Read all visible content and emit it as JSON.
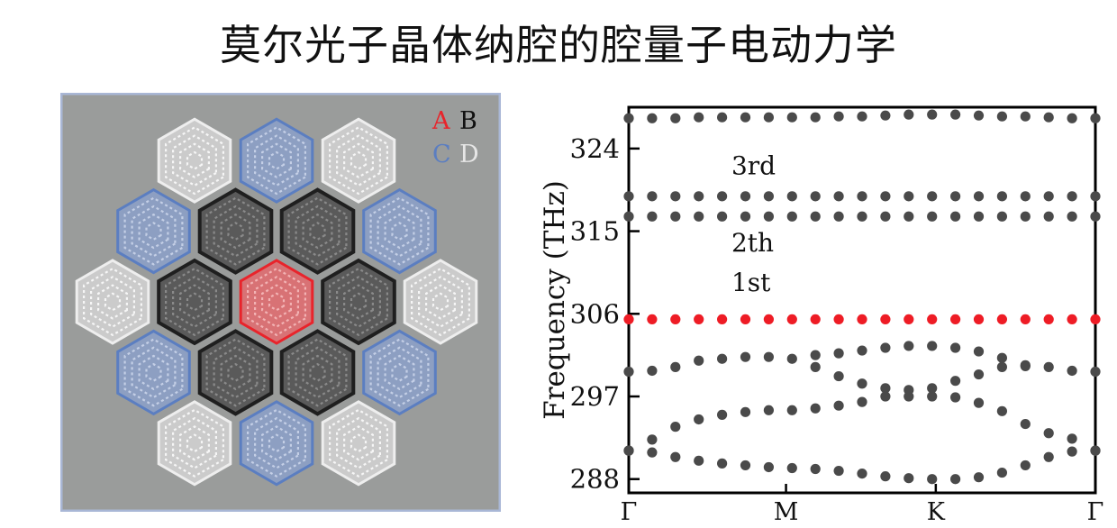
{
  "title": "莫尔光子晶体纳腔的腔量子电动力学",
  "lattice": {
    "legend": [
      {
        "letter": "A",
        "color": "#e8242b"
      },
      {
        "letter": "B",
        "color": "#111111"
      },
      {
        "letter": "C",
        "color": "#5b7ec1"
      },
      {
        "letter": "D",
        "color": "#e6e6e6"
      }
    ],
    "colors": {
      "background": "#9a9c9b",
      "border": "#a9b7d6",
      "A": "#e8242b",
      "B": "#2a2a2a",
      "C": "#6f8fcf",
      "D": "#f0f0f0"
    }
  },
  "chart_data": {
    "type": "scatter",
    "title": "",
    "xlabel": "",
    "ylabel": "Frequency (THz)",
    "x_ticks": [
      "Γ",
      "M",
      "K",
      "Γ"
    ],
    "y_ticks": [
      288,
      297,
      306,
      315,
      324
    ],
    "ylim": [
      286.5,
      328.5
    ],
    "grid": false,
    "annotations": [
      {
        "text": "3rd",
        "x": 0.22,
        "y": 321.2
      },
      {
        "text": "2th",
        "x": 0.22,
        "y": 312.8
      },
      {
        "text": "1st",
        "x": 0.22,
        "y": 308.5
      }
    ],
    "highlight_color": "#ee1c25",
    "point_color": "#4a4a4a",
    "series": [
      {
        "highlight": false,
        "x": [
          0,
          0.05,
          0.1,
          0.15,
          0.2,
          0.25,
          0.3,
          0.35,
          0.4,
          0.45,
          0.5,
          0.55,
          0.6,
          0.65,
          0.7,
          0.75,
          0.8,
          0.85,
          0.9,
          0.95,
          1.0
        ],
        "y": [
          327.3,
          327.3,
          327.3,
          327.4,
          327.4,
          327.4,
          327.4,
          327.4,
          327.4,
          327.5,
          327.5,
          327.6,
          327.7,
          327.7,
          327.7,
          327.6,
          327.5,
          327.5,
          327.4,
          327.3,
          327.3
        ]
      },
      {
        "highlight": false,
        "x": [
          0,
          0.05,
          0.1,
          0.15,
          0.2,
          0.25,
          0.3,
          0.35,
          0.4,
          0.45,
          0.5,
          0.55,
          0.6,
          0.65,
          0.7,
          0.75,
          0.8,
          0.85,
          0.9,
          0.95,
          1.0
        ],
        "y": [
          318.8,
          318.8,
          318.8,
          318.8,
          318.8,
          318.8,
          318.8,
          318.8,
          318.8,
          318.8,
          318.8,
          318.8,
          318.8,
          318.8,
          318.8,
          318.8,
          318.8,
          318.8,
          318.8,
          318.8,
          318.8
        ]
      },
      {
        "highlight": false,
        "x": [
          0,
          0.05,
          0.1,
          0.15,
          0.2,
          0.25,
          0.3,
          0.35,
          0.4,
          0.45,
          0.5,
          0.55,
          0.6,
          0.65,
          0.7,
          0.75,
          0.8,
          0.85,
          0.9,
          0.95,
          1.0
        ],
        "y": [
          316.6,
          316.6,
          316.6,
          316.6,
          316.6,
          316.6,
          316.6,
          316.6,
          316.6,
          316.6,
          316.6,
          316.6,
          316.6,
          316.6,
          316.6,
          316.6,
          316.6,
          316.6,
          316.6,
          316.6,
          316.6
        ]
      },
      {
        "highlight": true,
        "x": [
          0,
          0.05,
          0.1,
          0.15,
          0.2,
          0.25,
          0.3,
          0.35,
          0.4,
          0.45,
          0.5,
          0.55,
          0.6,
          0.65,
          0.7,
          0.75,
          0.8,
          0.85,
          0.9,
          0.95,
          1.0
        ],
        "y": [
          305.4,
          305.4,
          305.4,
          305.4,
          305.4,
          305.4,
          305.4,
          305.4,
          305.4,
          305.4,
          305.4,
          305.4,
          305.4,
          305.4,
          305.4,
          305.4,
          305.4,
          305.4,
          305.4,
          305.4,
          305.4
        ]
      },
      {
        "highlight": false,
        "x": [
          0,
          0.05,
          0.1,
          0.15,
          0.2,
          0.25,
          0.3,
          0.35,
          0.4,
          0.45,
          0.5,
          0.55,
          0.6,
          0.65,
          0.7,
          0.75,
          0.8,
          0.85,
          0.9,
          0.95,
          1.0
        ],
        "y": [
          299.7,
          299.8,
          300.2,
          300.9,
          301.1,
          301.3,
          301.3,
          301.1,
          300.2,
          299.2,
          298.4,
          297.9,
          297.7,
          297.9,
          298.7,
          299.4,
          300.2,
          300.4,
          300.2,
          299.8,
          299.7
        ]
      },
      {
        "highlight": false,
        "x": [
          0.4,
          0.45,
          0.5,
          0.55,
          0.6,
          0.65,
          0.7,
          0.75,
          0.8,
          0.85
        ],
        "y": [
          301.5,
          301.7,
          302.0,
          302.3,
          302.5,
          302.5,
          302.3,
          301.9,
          301.2,
          300.3
        ]
      },
      {
        "highlight": false,
        "x": [
          0,
          0.05,
          0.1,
          0.15,
          0.2,
          0.25,
          0.3,
          0.35,
          0.4,
          0.45,
          0.5,
          0.55,
          0.6,
          0.65,
          0.7,
          0.75,
          0.8,
          0.85,
          0.9,
          0.95,
          1.0
        ],
        "y": [
          291.1,
          292.3,
          293.7,
          294.5,
          295.0,
          295.3,
          295.5,
          295.5,
          295.7,
          296.0,
          296.4,
          297.0,
          297.0,
          297.0,
          296.9,
          296.3,
          295.4,
          294.0,
          293.0,
          292.4,
          291.1
        ]
      },
      {
        "highlight": false,
        "x": [
          0,
          0.05,
          0.1,
          0.15,
          0.2,
          0.25,
          0.3,
          0.35,
          0.4,
          0.45,
          0.5,
          0.55,
          0.6,
          0.65,
          0.7,
          0.75,
          0.8,
          0.85,
          0.9,
          0.95,
          1.0
        ],
        "y": [
          291.1,
          290.9,
          290.4,
          290.0,
          289.7,
          289.5,
          289.3,
          289.2,
          289.1,
          288.9,
          288.6,
          288.3,
          288.1,
          288.0,
          288.0,
          288.2,
          288.7,
          289.5,
          290.4,
          291.0,
          291.1
        ]
      }
    ]
  }
}
